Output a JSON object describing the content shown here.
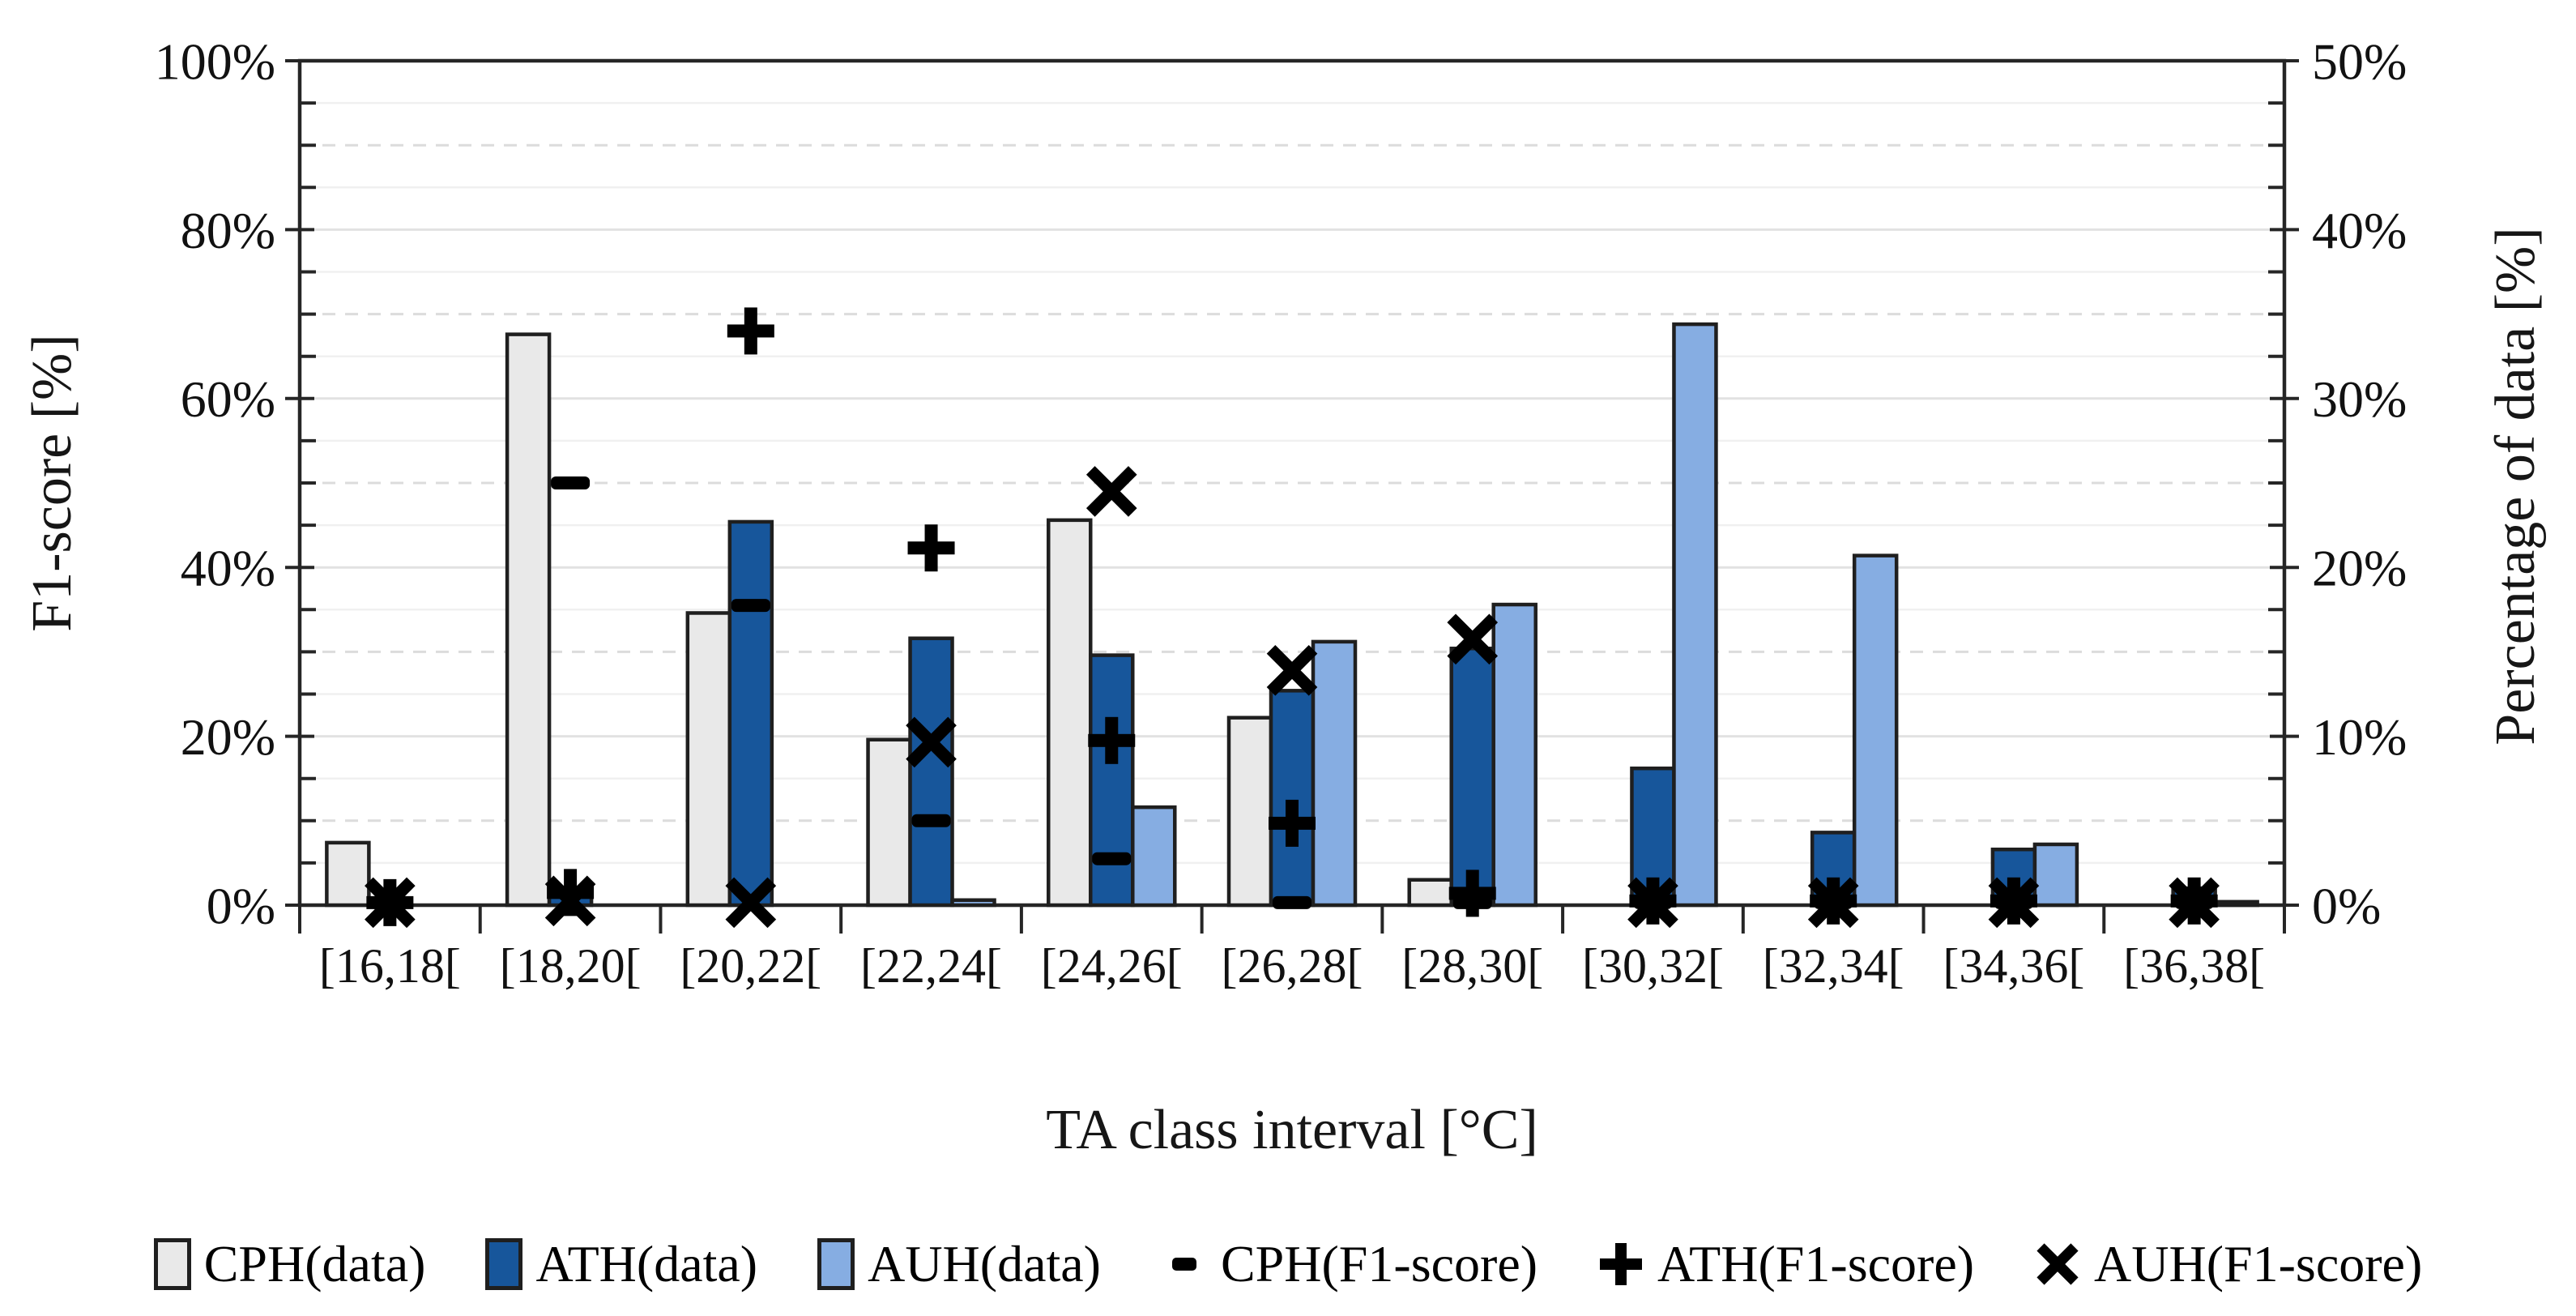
{
  "chart_data": {
    "type": "bar",
    "subtype": "clustered bars (right axis) with scatter markers overlay (left axis)",
    "categories": [
      "[16,18[",
      "[18,20[",
      "[20,22[",
      "[22,24[",
      "[24,26[",
      "[26,28[",
      "[28,30[",
      "[30,32[",
      "[32,34[",
      "[34,36[",
      "[36,38["
    ],
    "bar_series": [
      {
        "name": "CPH(data)",
        "axis": "right",
        "color": "#E9E9E9",
        "border": "#1f1f1f",
        "values": [
          3.7,
          33.8,
          17.3,
          9.8,
          22.8,
          11.1,
          1.5,
          0,
          0,
          0,
          0
        ]
      },
      {
        "name": "ATH(data)",
        "axis": "right",
        "color": "#17569B",
        "border": "#1f1f1f",
        "values": [
          0,
          0.5,
          22.7,
          15.8,
          14.8,
          12.7,
          15.2,
          8.1,
          4.3,
          3.3,
          1.0
        ]
      },
      {
        "name": "AUH(data)",
        "axis": "right",
        "color": "#86ADE2",
        "border": "#1f1f1f",
        "values": [
          0,
          0,
          0,
          0.3,
          5.8,
          15.6,
          17.8,
          34.4,
          20.7,
          3.6,
          0.2
        ]
      }
    ],
    "marker_series": [
      {
        "name": "CPH(F1-score)",
        "axis": "left",
        "marker": "dash",
        "color": "#000000",
        "values": [
          0.3,
          50,
          35.5,
          10,
          5.5,
          0.3,
          0.3,
          0.3,
          0.3,
          0.3,
          0.3
        ]
      },
      {
        "name": "ATH(F1-score)",
        "axis": "left",
        "marker": "plus",
        "color": "#000000",
        "values": [
          0.3,
          1.5,
          68,
          42.3,
          19.5,
          9.7,
          1.4,
          0.5,
          0.5,
          0.5,
          0.5
        ]
      },
      {
        "name": "AUH(F1-score)",
        "axis": "left",
        "marker": "x",
        "color": "#000000",
        "values": [
          0.3,
          0.5,
          0.3,
          19.3,
          49,
          27.8,
          31.5,
          0.3,
          0.3,
          0.3,
          0.3
        ]
      }
    ],
    "left_axis": {
      "title": "F1-score [%]",
      "min": 0,
      "max": 100,
      "major_step": 20,
      "minor_step": 5,
      "tick_labels": [
        "0%",
        "20%",
        "40%",
        "60%",
        "80%",
        "100%"
      ]
    },
    "right_axis": {
      "title": "Percentage of data [%]",
      "min": 0,
      "max": 50,
      "major_step": 10,
      "minor_step": 2.5,
      "tick_labels": [
        "0%",
        "10%",
        "20%",
        "30%",
        "40%",
        "50%"
      ]
    },
    "x_axis": {
      "title": "TA class interval [°C]"
    },
    "legend": [
      {
        "label": "CPH(data)",
        "swatch": "bar",
        "color": "#E9E9E9"
      },
      {
        "label": "ATH(data)",
        "swatch": "bar",
        "color": "#17569B"
      },
      {
        "label": "AUH(data)",
        "swatch": "bar",
        "color": "#86ADE2"
      },
      {
        "label": "CPH(F1-score)",
        "swatch": "dash",
        "color": "#000000"
      },
      {
        "label": "ATH(F1-score)",
        "swatch": "plus",
        "color": "#000000"
      },
      {
        "label": "AUH(F1-score)",
        "swatch": "x",
        "color": "#000000"
      }
    ],
    "grid": {
      "horizontal": true,
      "minor_interval_left_axis": 5
    },
    "legend_position": "bottom"
  }
}
